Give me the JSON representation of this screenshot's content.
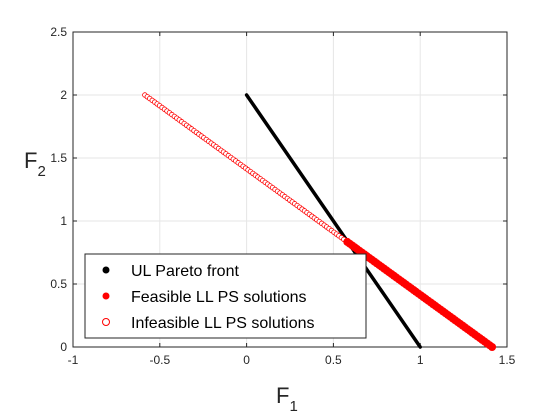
{
  "chart_data": {
    "type": "scatter",
    "title": "",
    "xlabel": {
      "main": "F",
      "sub": "1"
    },
    "ylabel": {
      "main": "F",
      "sub": "2"
    },
    "xlim": [
      -1,
      1.5
    ],
    "ylim": [
      0,
      2.5
    ],
    "xticks": [
      -1,
      -0.5,
      0,
      0.5,
      1,
      1.5
    ],
    "yticks": [
      0,
      0.5,
      1,
      1.5,
      2,
      2.5
    ],
    "xtick_labels": [
      "-1",
      "-0.5",
      "0",
      "0.5",
      "1",
      "1.5"
    ],
    "ytick_labels": [
      "0",
      "0.5",
      "1",
      "1.5",
      "2",
      "2.5"
    ],
    "grid": true,
    "legend_position": "bottom-left",
    "series": [
      {
        "name": "UL Pareto front",
        "style": "line",
        "color": "#000000",
        "x": [
          0,
          1
        ],
        "y": [
          2,
          0
        ]
      },
      {
        "name": "Feasible LL PS solutions",
        "style": "filled-markers",
        "color": "#ff0000",
        "x_range": [
          0.58,
          1.414
        ],
        "line": {
          "slope": -1,
          "intercept": 1.414
        },
        "points": 60
      },
      {
        "name": "Infeasible LL PS solutions",
        "style": "open-markers",
        "color": "#ff0000",
        "x_range": [
          -0.586,
          0.56
        ],
        "line": {
          "slope": -1,
          "intercept": 1.414
        },
        "points": 82
      }
    ]
  }
}
